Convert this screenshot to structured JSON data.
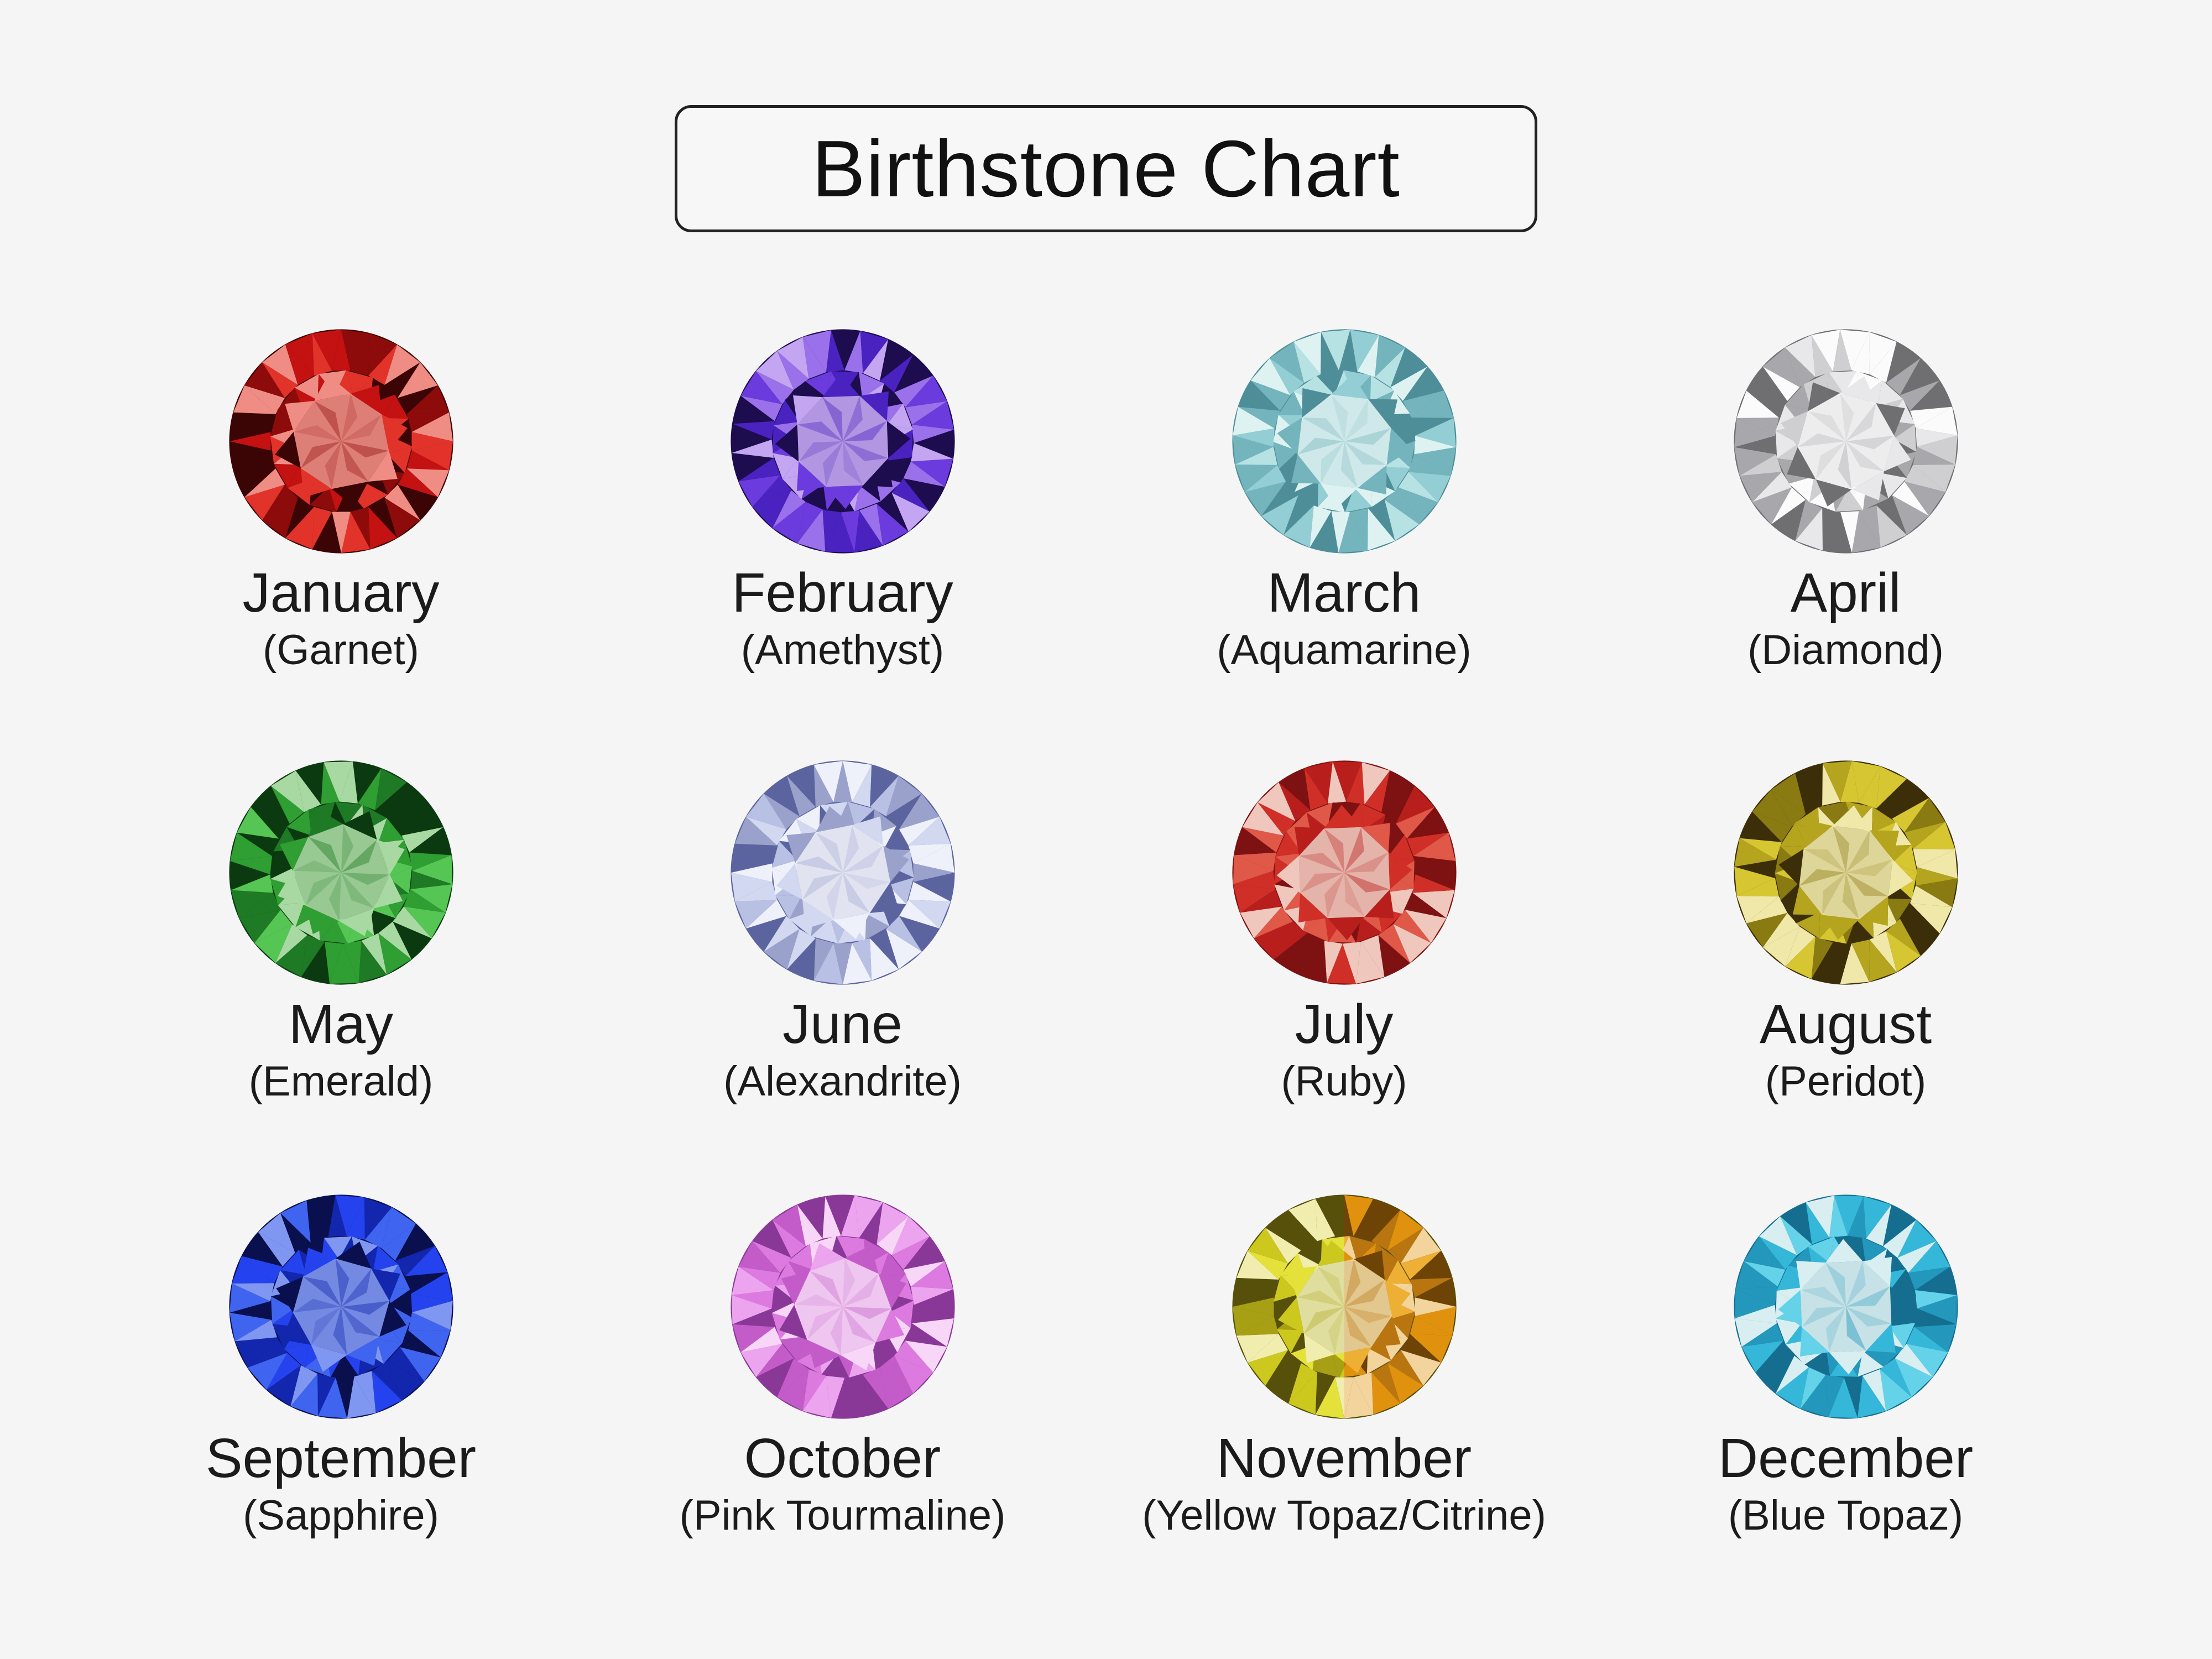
{
  "page": {
    "background_color": "#f5f5f6",
    "text_color": "#1b1b1b"
  },
  "title": {
    "label": "Birthstone Chart"
  },
  "months": [
    {
      "month": "January",
      "stone": "(Garnet)",
      "palette": [
        "#3c0505",
        "#8e0b0b",
        "#c41111",
        "#e2332a",
        "#ef8d84"
      ]
    },
    {
      "month": "February",
      "stone": "(Amethyst)",
      "palette": [
        "#1d0c4e",
        "#4a22c0",
        "#6c3bdd",
        "#9a71ea",
        "#c3a5f2"
      ]
    },
    {
      "month": "March",
      "stone": "(Aquamarine)",
      "palette": [
        "#4e8e98",
        "#74b4bd",
        "#93ced4",
        "#b7e2e4",
        "#def2f2"
      ]
    },
    {
      "month": "April",
      "stone": "(Diamond)",
      "palette": [
        "#6f6f72",
        "#a8a8ac",
        "#cfcfd2",
        "#e8e8ea",
        "#fbfbfc"
      ]
    },
    {
      "month": "May",
      "stone": "(Emerald)",
      "palette": [
        "#0b3a10",
        "#1e7a24",
        "#2f9e33",
        "#55c653",
        "#a9d9a2"
      ]
    },
    {
      "month": "June",
      "stone": "(Alexandrite)",
      "palette": [
        "#5c64a0",
        "#9aa2cc",
        "#b8c0e4",
        "#d2d8f0",
        "#eff1fa"
      ]
    },
    {
      "month": "July",
      "stone": "(Ruby)",
      "palette": [
        "#7e1212",
        "#b81f1c",
        "#cf2f27",
        "#e05848",
        "#efc7bd"
      ]
    },
    {
      "month": "August",
      "stone": "(Peridot)",
      "palette": [
        "#3c2e08",
        "#8a7a12",
        "#b4a41e",
        "#d6c632",
        "#efe8a8"
      ]
    },
    {
      "month": "September",
      "stone": "(Sapphire)",
      "palette": [
        "#0a0f4e",
        "#1326ae",
        "#2443ee",
        "#3f64f0",
        "#8097f2"
      ]
    },
    {
      "month": "October",
      "stone": "(Pink Tourmaline)",
      "palette": [
        "#8a3898",
        "#c35cc8",
        "#dd7ae0",
        "#eda4ef",
        "#f8d6f8"
      ]
    },
    {
      "month": "November",
      "stone": "(Yellow Topaz/Citrine)",
      "palette": [
        "#56500a",
        "#a8a014",
        "#ccc81e",
        "#e4e23a",
        "#f0edae"
      ],
      "palette2": [
        "#6e4406",
        "#b87510",
        "#e0920f",
        "#eeaf35",
        "#f2d49c"
      ]
    },
    {
      "month": "December",
      "stone": "(Blue Topaz)",
      "palette": [
        "#156e90",
        "#2397bc",
        "#35b7d9",
        "#64d2e8",
        "#d9eef0"
      ]
    }
  ]
}
